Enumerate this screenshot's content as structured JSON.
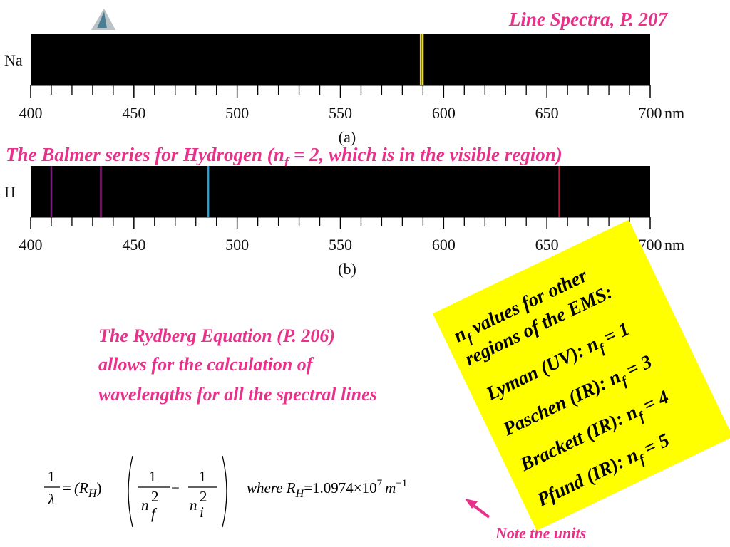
{
  "header": {
    "title": "Line Spectra, P. 207"
  },
  "axis": {
    "xlim": [
      400,
      700
    ],
    "ticks": [
      400,
      450,
      500,
      550,
      600,
      650,
      700
    ],
    "minor_ticks": [
      410,
      420,
      430,
      440,
      460,
      470,
      480,
      490,
      510,
      520,
      530,
      540,
      560,
      570,
      580,
      590,
      610,
      620,
      630,
      640,
      660,
      670,
      680,
      690
    ],
    "unit": "nm"
  },
  "spectra": [
    {
      "element": "Na",
      "caption": "(a)",
      "lines": [
        {
          "wavelength": 588.9,
          "color": "#e6d84a"
        },
        {
          "wavelength": 589.9,
          "color": "#e6d84a"
        }
      ]
    },
    {
      "element": "H",
      "caption": "(b)",
      "lines": [
        {
          "wavelength": 410,
          "color": "#7a1f7a"
        },
        {
          "wavelength": 434,
          "color": "#8a1f7a"
        },
        {
          "wavelength": 486,
          "color": "#22a0d8"
        },
        {
          "wavelength": 656,
          "color": "#c0102a"
        }
      ]
    }
  ],
  "balmer": {
    "before": "The Balmer series for Hydrogen (n",
    "sub": "f",
    "after": " = 2, which is in the visible region)"
  },
  "rydberg": {
    "lines": [
      "The Rydberg Equation (P. 206)",
      "allows for the calculation of",
      "wavelengths for all the spectral lines"
    ]
  },
  "equation": {
    "one_a": "1",
    "lambda": "λ",
    "eq": "=",
    "rh_open": "(R",
    "rh_sub": "H",
    "rh_close": ")",
    "one_b": "1",
    "nf": "n",
    "nf_sup": "2",
    "nf_sub": "f",
    "minus": "−",
    "one_c": "1",
    "ni": "n",
    "ni_sup": "2",
    "ni_sub": "i",
    "where": "where R",
    "where_sub": "H",
    "value": "=1.0974×10",
    "exp": "7",
    "unit": "m",
    "unit_exp": "−1"
  },
  "note": "Note the units",
  "callout": {
    "lines": [
      {
        "a": "n",
        "sub": "f",
        "b": " values for other"
      },
      {
        "a": "regions of the EMS:"
      },
      {
        "a": "Lyman (UV): n",
        "sub": "f",
        "b": " = 1"
      },
      {
        "a": "Paschen (IR): n",
        "sub": "f",
        "b": " = 3"
      },
      {
        "a": "Brackett (IR): n",
        "sub": "f",
        "b": " = 4"
      },
      {
        "a": "Pfund (IR): n",
        "sub": "f",
        "b": " = 5"
      }
    ]
  }
}
